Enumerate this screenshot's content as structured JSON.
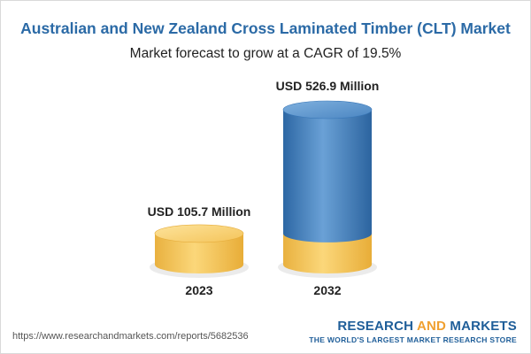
{
  "header": {
    "title": "Australian and New Zealand Cross Laminated Timber (CLT) Market",
    "subtitle": "Market forecast to grow at a CAGR of 19.5%"
  },
  "chart_data": {
    "type": "bar",
    "categories": [
      "2023",
      "2032"
    ],
    "values": [
      105.7,
      526.9
    ],
    "data_labels": [
      "USD 105.7 Million",
      "USD 526.9 Million"
    ],
    "unit": "USD Million",
    "colors": {
      "base": "#f5c75a",
      "projection": "#3f7fc0"
    }
  },
  "footer": {
    "url": "https://www.researchandmarkets.com/reports/5682536",
    "brand_part1": "RESEARCH ",
    "brand_part2": "AND",
    "brand_part3": " MARKETS",
    "brand_tagline": "THE WORLD'S LARGEST MARKET RESEARCH STORE"
  }
}
